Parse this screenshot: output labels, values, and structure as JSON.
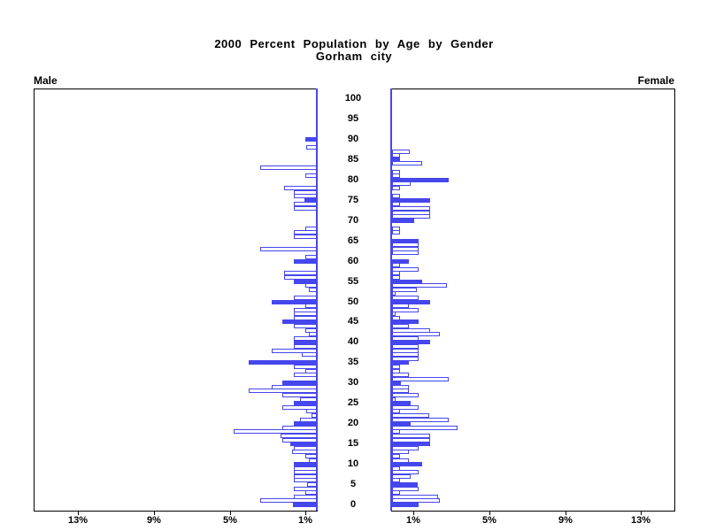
{
  "title": {
    "line1": "2000 Percent Population by Age by Gender",
    "line2": "Gorham city"
  },
  "panel_labels": {
    "male": "Male",
    "female": "Female"
  },
  "colors": {
    "bar_blue": "#4646ee",
    "frame_black": "#000000",
    "background": "#ffffff"
  },
  "chart_data": {
    "type": "bar",
    "subtype": "population-pyramid",
    "title": "2000 Percent Population by Age by Gender",
    "subtitle": "Gorham city",
    "orientation": "horizontal, male bars grow left / female bars grow right from central zero baselines",
    "age_axis": {
      "min": 0,
      "max": 100,
      "tick_step": 5,
      "position": "center column between panels"
    },
    "age_tick_labels": [
      "0",
      "5",
      "10",
      "15",
      "20",
      "25",
      "30",
      "35",
      "40",
      "45",
      "50",
      "55",
      "60",
      "65",
      "70",
      "75",
      "80",
      "85",
      "90",
      "95",
      "100"
    ],
    "percent_axis": {
      "max_percent": 15,
      "tick_values": [
        1,
        5,
        9,
        13
      ]
    },
    "male_tick_labels": [
      "13%",
      "9%",
      "5%",
      "1%"
    ],
    "female_tick_labels": [
      "1%",
      "5%",
      "9%",
      "13%"
    ],
    "legend": "solid bars mark ages at 5-year multiples; other single-year ages are outlined bars",
    "bars_format": [
      "age",
      "percent_of_population",
      "is_solid_fill"
    ],
    "series": [
      {
        "name": "Male",
        "side": "left",
        "bars": [
          [
            0,
            1.25,
            1
          ],
          [
            1,
            3.0,
            0
          ],
          [
            2,
            1.2,
            0
          ],
          [
            3,
            0.6,
            0
          ],
          [
            4,
            1.2,
            0
          ],
          [
            5,
            0.5,
            0
          ],
          [
            6,
            1.2,
            0
          ],
          [
            7,
            1.2,
            0
          ],
          [
            8,
            1.2,
            0
          ],
          [
            9,
            1.2,
            0
          ],
          [
            10,
            1.2,
            1
          ],
          [
            11,
            0.4,
            0
          ],
          [
            12,
            0.6,
            0
          ],
          [
            13,
            1.3,
            0
          ],
          [
            14,
            1.2,
            0
          ],
          [
            15,
            1.4,
            1
          ],
          [
            16,
            1.8,
            0
          ],
          [
            17,
            1.9,
            0
          ],
          [
            18,
            4.4,
            0
          ],
          [
            19,
            1.8,
            0
          ],
          [
            20,
            1.2,
            1
          ],
          [
            21,
            0.9,
            0
          ],
          [
            22,
            0.3,
            0
          ],
          [
            23,
            0.55,
            0
          ],
          [
            24,
            1.8,
            0
          ],
          [
            25,
            1.2,
            1
          ],
          [
            26,
            0.9,
            0
          ],
          [
            27,
            1.8,
            0
          ],
          [
            28,
            3.6,
            0
          ],
          [
            29,
            2.4,
            0
          ],
          [
            30,
            1.8,
            1
          ],
          [
            32,
            1.2,
            0
          ],
          [
            33,
            0.6,
            0
          ],
          [
            34,
            1.2,
            0
          ],
          [
            35,
            3.6,
            1
          ],
          [
            37,
            0.8,
            0
          ],
          [
            38,
            2.4,
            0
          ],
          [
            39,
            1.2,
            0
          ],
          [
            40,
            1.2,
            1
          ],
          [
            41,
            1.2,
            0
          ],
          [
            42,
            0.4,
            0
          ],
          [
            43,
            0.6,
            0
          ],
          [
            44,
            1.2,
            0
          ],
          [
            45,
            1.8,
            1
          ],
          [
            46,
            1.2,
            0
          ],
          [
            47,
            1.2,
            0
          ],
          [
            48,
            1.2,
            0
          ],
          [
            49,
            0.6,
            0
          ],
          [
            50,
            2.4,
            1
          ],
          [
            51,
            1.2,
            0
          ],
          [
            53,
            0.4,
            0
          ],
          [
            54,
            0.6,
            0
          ],
          [
            55,
            1.2,
            1
          ],
          [
            56,
            1.75,
            0
          ],
          [
            57,
            1.75,
            0
          ],
          [
            60,
            1.2,
            1
          ],
          [
            61,
            0.6,
            0
          ],
          [
            63,
            3.0,
            0
          ],
          [
            66,
            1.2,
            0
          ],
          [
            67,
            1.2,
            0
          ],
          [
            68,
            0.6,
            0
          ],
          [
            73,
            1.2,
            0
          ],
          [
            74,
            1.2,
            0
          ],
          [
            75,
            0.65,
            1
          ],
          [
            76,
            1.2,
            0
          ],
          [
            77,
            1.2,
            0
          ],
          [
            78,
            1.75,
            0
          ],
          [
            81,
            0.6,
            0
          ],
          [
            83,
            3.0,
            0
          ],
          [
            88,
            0.55,
            0
          ],
          [
            90,
            0.6,
            1
          ]
        ]
      },
      {
        "name": "Female",
        "side": "right",
        "bars": [
          [
            0,
            1.4,
            1
          ],
          [
            1,
            2.5,
            0
          ],
          [
            2,
            2.45,
            0
          ],
          [
            3,
            0.4,
            0
          ],
          [
            4,
            1.4,
            0
          ],
          [
            5,
            1.35,
            1
          ],
          [
            6,
            0.4,
            0
          ],
          [
            7,
            1.0,
            0
          ],
          [
            8,
            1.4,
            0
          ],
          [
            9,
            0.4,
            0
          ],
          [
            10,
            1.6,
            1
          ],
          [
            11,
            0.9,
            0
          ],
          [
            12,
            0.4,
            0
          ],
          [
            13,
            0.9,
            0
          ],
          [
            14,
            1.4,
            0
          ],
          [
            15,
            2.0,
            1
          ],
          [
            16,
            2.0,
            0
          ],
          [
            17,
            2.0,
            0
          ],
          [
            18,
            0.4,
            0
          ],
          [
            19,
            3.45,
            0
          ],
          [
            20,
            1.0,
            1
          ],
          [
            21,
            3.0,
            0
          ],
          [
            22,
            1.95,
            0
          ],
          [
            23,
            0.4,
            0
          ],
          [
            24,
            1.4,
            0
          ],
          [
            25,
            1.0,
            1
          ],
          [
            26,
            0.2,
            0
          ],
          [
            27,
            1.4,
            0
          ],
          [
            28,
            0.9,
            0
          ],
          [
            29,
            0.9,
            0
          ],
          [
            30,
            0.45,
            1
          ],
          [
            31,
            3.0,
            0
          ],
          [
            32,
            0.9,
            0
          ],
          [
            33,
            0.4,
            0
          ],
          [
            34,
            0.4,
            0
          ],
          [
            35,
            0.9,
            1
          ],
          [
            36,
            1.4,
            0
          ],
          [
            37,
            1.4,
            0
          ],
          [
            38,
            1.4,
            0
          ],
          [
            39,
            1.4,
            0
          ],
          [
            40,
            2.0,
            1
          ],
          [
            41,
            1.4,
            0
          ],
          [
            42,
            2.5,
            0
          ],
          [
            43,
            2.0,
            0
          ],
          [
            44,
            0.9,
            0
          ],
          [
            45,
            1.4,
            1
          ],
          [
            46,
            0.4,
            0
          ],
          [
            47,
            0.2,
            0
          ],
          [
            48,
            1.4,
            0
          ],
          [
            49,
            0.9,
            0
          ],
          [
            50,
            2.0,
            1
          ],
          [
            51,
            1.4,
            0
          ],
          [
            52,
            0.2,
            0
          ],
          [
            53,
            1.3,
            0
          ],
          [
            54,
            2.9,
            0
          ],
          [
            55,
            1.6,
            1
          ],
          [
            56,
            0.4,
            0
          ],
          [
            57,
            0.4,
            0
          ],
          [
            58,
            1.4,
            0
          ],
          [
            59,
            0.4,
            0
          ],
          [
            60,
            0.9,
            1
          ],
          [
            62,
            1.4,
            0
          ],
          [
            63,
            1.4,
            0
          ],
          [
            64,
            1.4,
            0
          ],
          [
            65,
            1.4,
            1
          ],
          [
            67,
            0.4,
            0
          ],
          [
            68,
            0.4,
            0
          ],
          [
            70,
            1.15,
            1
          ],
          [
            71,
            2.0,
            0
          ],
          [
            72,
            2.0,
            0
          ],
          [
            73,
            2.0,
            0
          ],
          [
            74,
            0.4,
            0
          ],
          [
            75,
            2.0,
            1
          ],
          [
            76,
            0.4,
            0
          ],
          [
            78,
            0.4,
            0
          ],
          [
            79,
            1.0,
            0
          ],
          [
            80,
            3.0,
            1
          ],
          [
            81,
            0.4,
            0
          ],
          [
            82,
            0.4,
            0
          ],
          [
            84,
            1.6,
            0
          ],
          [
            85,
            0.4,
            1
          ],
          [
            86,
            0.4,
            0
          ],
          [
            87,
            0.95,
            0
          ]
        ]
      }
    ]
  }
}
